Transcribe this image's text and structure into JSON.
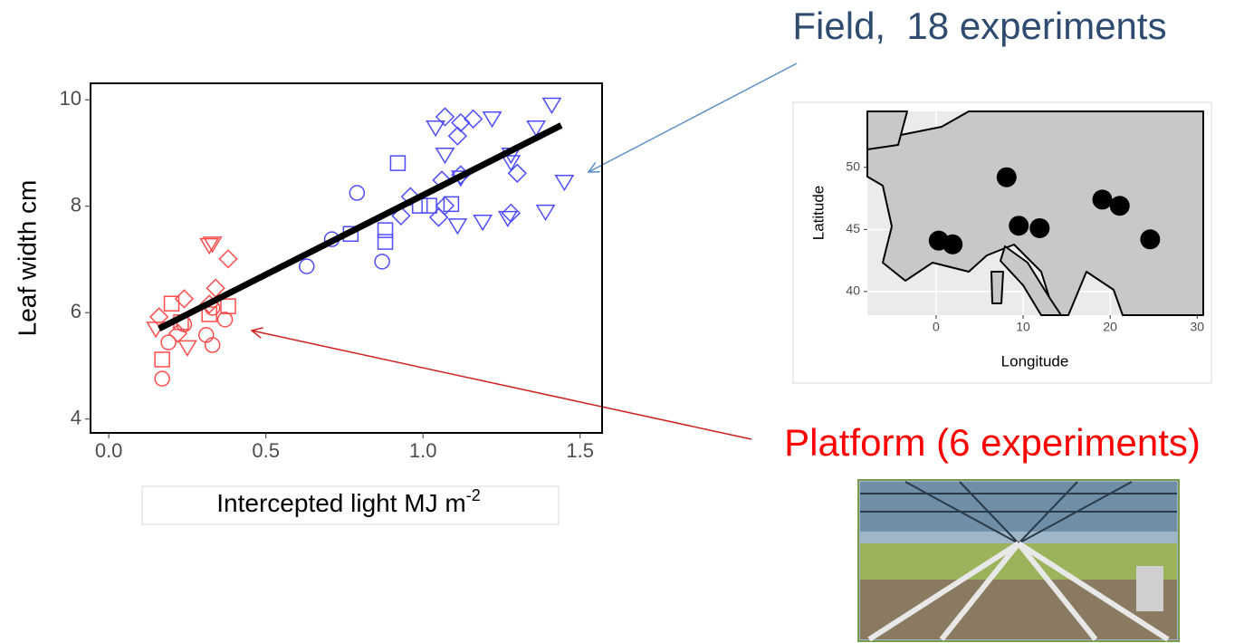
{
  "chart_data": [
    {
      "type": "scatter",
      "ylabel": "Leaf width cm",
      "xlabel": "Intercepted light MJ m",
      "xlabel_superscript": "-2",
      "xlim": [
        -0.058,
        1.57
      ],
      "ylim": [
        3.74,
        10.31
      ],
      "xticks": [
        {
          "value": 0,
          "label": "0.0"
        },
        {
          "value": 0.5,
          "label": "0.5"
        },
        {
          "value": 1,
          "label": "1.0"
        },
        {
          "value": 1.5,
          "label": "1.5"
        }
      ],
      "yticks": [
        4,
        6,
        8,
        10
      ],
      "series": [
        {
          "color": "#ff4d4d",
          "marker": "circle",
          "x": [
            0.17,
            0.19,
            0.24,
            0.31,
            0.33,
            0.37,
            0.33
          ],
          "values": [
            4.76,
            5.44,
            5.78,
            5.58,
            5.39,
            5.87,
            6.09
          ]
        },
        {
          "color": "#ff4d4d",
          "marker": "square",
          "x": [
            0.17,
            0.2,
            0.32,
            0.38,
            0.23
          ],
          "values": [
            5.12,
            6.17,
            5.97,
            6.12,
            5.82
          ]
        },
        {
          "color": "#ff4d4d",
          "marker": "diamond",
          "x": [
            0.16,
            0.24,
            0.34,
            0.38,
            0.22,
            0.32
          ],
          "values": [
            5.92,
            6.26,
            6.46,
            7.01,
            5.61,
            6.16
          ]
        },
        {
          "color": "#ff4d4d",
          "marker": "triangle",
          "x": [
            0.15,
            0.25,
            0.32,
            0.33
          ],
          "values": [
            5.71,
            5.36,
            7.28,
            7.31
          ]
        },
        {
          "color": "#4d4dff",
          "marker": "circle",
          "x": [
            0.63,
            0.71,
            0.79,
            0.87
          ],
          "values": [
            6.87,
            7.38,
            8.25,
            6.96
          ]
        },
        {
          "color": "#4d4dff",
          "marker": "square",
          "x": [
            0.77,
            0.88,
            0.88,
            0.92,
            0.99,
            1.02,
            1.09
          ],
          "values": [
            7.48,
            7.55,
            7.33,
            8.81,
            8.01,
            8.01,
            8.04
          ]
        },
        {
          "color": "#4d4dff",
          "marker": "diamond",
          "x": [
            0.93,
            0.96,
            1.05,
            1.06,
            1.07,
            1.11,
            1.12,
            1.16,
            1.07,
            1.28,
            1.3,
            1.12
          ],
          "values": [
            7.82,
            8.18,
            7.79,
            8.49,
            9.68,
            9.32,
            9.57,
            9.64,
            8.01,
            7.87,
            8.62,
            8.59
          ]
        },
        {
          "color": "#4d4dff",
          "marker": "triangle",
          "x": [
            1.04,
            1.07,
            1.12,
            1.11,
            1.19,
            1.22,
            1.27,
            1.28,
            1.28,
            1.36,
            1.39,
            1.41,
            1.45
          ],
          "values": [
            9.49,
            8.98,
            8.55,
            7.65,
            7.72,
            9.66,
            7.79,
            8.84,
            8.98,
            9.49,
            7.91,
            9.92,
            8.47
          ]
        }
      ],
      "fit_line": {
        "color": "#000000",
        "x": [
          0.16,
          1.44
        ],
        "values": [
          5.7,
          9.52
        ]
      },
      "annotations": [
        {
          "text": "Field,  18 experiments",
          "color": "#2f4b70"
        },
        {
          "text": "Platform (6 experiments)",
          "color": "#ff0000"
        }
      ]
    },
    {
      "type": "scatter",
      "xlabel": "Longitude",
      "ylabel": "Latitude",
      "xlim": [
        -7.9,
        30.7
      ],
      "ylim": [
        38.1,
        54.5
      ],
      "xticks": [
        0,
        10,
        20,
        30
      ],
      "yticks": [
        40,
        45,
        50
      ],
      "grid": true,
      "series": [
        {
          "color": "#000000",
          "marker": "dot",
          "x": [
            0.3,
            1.9,
            8.1,
            9.5,
            11.9,
            19.1,
            21.1,
            24.6
          ],
          "values": [
            44.1,
            43.8,
            49.2,
            45.3,
            45.1,
            47.4,
            46.9,
            44.2
          ]
        }
      ]
    }
  ]
}
